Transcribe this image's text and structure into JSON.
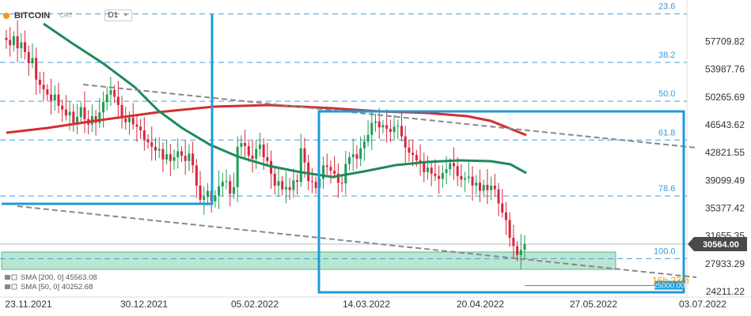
{
  "header": {
    "symbol": "BITCOIN",
    "type": "CRT",
    "timeframe": "D1"
  },
  "price_label": "30564.00",
  "level_label": "25000.00",
  "countdown": "16h 23m",
  "legend": [
    "SMA [200, 0] 45563.08",
    "SMA [50, 0] 40252.68"
  ],
  "chart_data": {
    "type": "candlestick",
    "title": "BITCOIN",
    "y_ticks": [
      57709.82,
      53987.76,
      50265.69,
      46543.62,
      42821.55,
      39099.49,
      35377.42,
      31655.35,
      27933.29,
      24211.22
    ],
    "x_ticks": [
      "23.11.2021",
      "30.12.2021",
      "05.02.2022",
      "14.03.2022",
      "20.04.2022",
      "27.05.2022",
      "03.07.2022"
    ],
    "last_price": 30564.0,
    "support_level": 25000.0,
    "fibonacci": [
      {
        "label": "23.6",
        "price": 61400
      },
      {
        "label": "38.2",
        "price": 54900
      },
      {
        "label": "50.0",
        "price": 49700
      },
      {
        "label": "61.8",
        "price": 44500
      },
      {
        "label": "78.6",
        "price": 37000
      },
      {
        "label": "100.0",
        "price": 28600
      }
    ],
    "series": [
      {
        "name": "SMA [200, 0]",
        "value": 45563.08,
        "color": "#d32f2f"
      },
      {
        "name": "SMA [50, 0]",
        "value": 40252.68,
        "color": "#1e8a5a"
      }
    ],
    "closes": [
      57900,
      57200,
      58400,
      56800,
      57600,
      56300,
      54800,
      55500,
      52600,
      51900,
      51300,
      50600,
      49800,
      50600,
      49100,
      48600,
      47800,
      48300,
      46800,
      47600,
      48900,
      47300,
      46600,
      47700,
      46800,
      48200,
      49600,
      50600,
      51200,
      50300,
      49200,
      47400,
      46900,
      47500,
      46600,
      46300,
      45800,
      44600,
      44200,
      43600,
      43100,
      43300,
      41900,
      42600,
      41700,
      42200,
      43000,
      42400,
      41700,
      42700,
      41100,
      38400,
      36500,
      36900,
      37700,
      36300,
      37100,
      38300,
      38900,
      39000,
      37300,
      38200,
      43600,
      44100,
      43700,
      42400,
      42000,
      43300,
      43900,
      42200,
      41700,
      40000,
      38400,
      39000,
      37900,
      38200,
      37800,
      39100,
      38900,
      43400,
      41500,
      39000,
      38900,
      38100,
      39300,
      41100,
      40900,
      40400,
      40000,
      38800,
      38700,
      41300,
      42200,
      42600,
      42000,
      43400,
      44300,
      45200,
      46800,
      47000,
      46200,
      46500,
      46000,
      45600,
      46300,
      46400,
      45000,
      43500,
      42800,
      42500,
      41800,
      41600,
      40200,
      40800,
      40000,
      39700,
      39300,
      40100,
      40600,
      41400,
      41000,
      39700,
      39200,
      39400,
      39600,
      38400,
      38800,
      37700,
      38500,
      37800,
      38400,
      37900,
      36000,
      34800,
      33800,
      31400,
      30300,
      29100,
      29800,
      30564
    ]
  }
}
